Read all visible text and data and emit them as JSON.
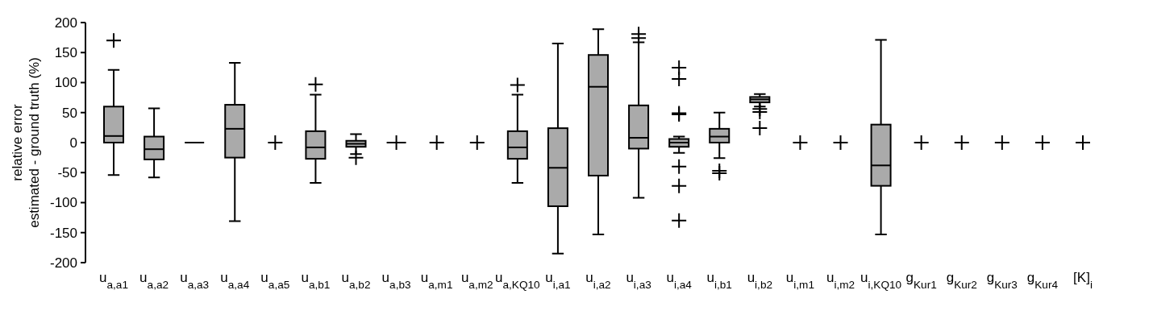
{
  "chart_data": {
    "type": "box",
    "ylabel": "relative error\nestimated - ground truth  (%)",
    "categories": [
      "u$_{a,a1}$",
      "u$_{a,a2}$",
      "u$_{a,a3}$",
      "u$_{a,a4}$",
      "u$_{a,a5}$",
      "u$_{a,b1}$",
      "u$_{a,b2}$",
      "u$_{a,b3}$",
      "u$_{a,m1}$",
      "u$_{a,m2}$",
      "u$_{a,KQ10}$",
      "u$_{i,a1}$",
      "u$_{i,a2}$",
      "u$_{i,a3}$",
      "u$_{i,a4}$",
      "u$_{i,b1}$",
      "u$_{i,b2}$",
      "u$_{i,m1}$",
      "u$_{i,m2}$",
      "u$_{i,KQ10}$",
      "g$_{Kur1}$",
      "g$_{Kur2}$",
      "g$_{Kur3}$",
      "g$_{Kur4}$",
      "[K]$_{i}$"
    ],
    "boxes": [
      {
        "low": -54,
        "q1": 0,
        "median": 11,
        "q3": 60,
        "high": 121,
        "outliers": [
          170
        ]
      },
      {
        "low": -58,
        "q1": -28,
        "median": -11,
        "q3": 10,
        "high": 57
      },
      {
        "low": 0,
        "q1": 0,
        "median": 0,
        "q3": 0,
        "high": 0
      },
      {
        "low": -131,
        "q1": -25,
        "median": 23,
        "q3": 63,
        "high": 133
      },
      null,
      {
        "low": -67,
        "q1": -27,
        "median": -8,
        "q3": 19,
        "high": 80,
        "outliers": [
          97
        ]
      },
      {
        "low": -19,
        "q1": -7,
        "median": -2,
        "q3": 3,
        "high": 14,
        "outliers": [
          -25
        ]
      },
      {
        "low": 0,
        "q1": 0,
        "median": 0,
        "q3": 0,
        "high": 0
      },
      null,
      null,
      {
        "low": -67,
        "q1": -27,
        "median": -8,
        "q3": 19,
        "high": 80,
        "outliers": [
          96
        ]
      },
      {
        "low": -185,
        "q1": -106,
        "median": -42,
        "q3": 24,
        "high": 165
      },
      {
        "low": -153,
        "q1": -55,
        "median": 93,
        "q3": 146,
        "high": 189
      },
      {
        "low": -92,
        "q1": -10,
        "median": 8,
        "q3": 62,
        "high": 167,
        "outliers": [
          174,
          181
        ]
      },
      {
        "low": -17,
        "q1": -7,
        "median": 0,
        "q3": 6,
        "high": 10,
        "outliers": [
          125,
          106,
          49,
          47,
          -40,
          -72,
          -130
        ]
      },
      {
        "low": -26,
        "q1": 0,
        "median": 10,
        "q3": 23,
        "high": 50,
        "outliers": [
          -47,
          -51
        ]
      },
      {
        "low": 60,
        "q1": 67,
        "median": 72,
        "q3": 76,
        "high": 81,
        "outliers": [
          56,
          51,
          24
        ]
      },
      null,
      null,
      {
        "low": -153,
        "q1": -72,
        "median": -38,
        "q3": 30,
        "high": 171
      },
      null,
      null,
      null,
      null,
      null
    ],
    "series": [
      {
        "type": "scatter",
        "x": [
          "u$_{a,a5}$",
          "u$_{a,b3}$",
          "u$_{a,m1}$",
          "u$_{a,m2}$",
          "u$_{i,m1}$",
          "u$_{i,m2}$",
          "g$_{Kur1}$",
          "g$_{Kur2}$",
          "g$_{Kur3}$",
          "g$_{Kur4}$",
          "[K]$_{i}$"
        ],
        "values": [
          0,
          0,
          0,
          0,
          0,
          0,
          0,
          0,
          0,
          0,
          0
        ],
        "color": "#000000"
      }
    ],
    "colors": [
      "#aaaaaa",
      "#aaaaaa",
      "#000000",
      "#aaaaaa",
      null,
      "#aaaaaa",
      "#aaaaaa",
      "#000000",
      null,
      null,
      "#aaaaaa",
      "#aaaaaa",
      "#aaaaaa",
      "#aaaaaa",
      "#aaaaaa",
      "#aaaaaa",
      "#aaaaaa",
      null,
      null,
      "#aaaaaa",
      null,
      null,
      null,
      null,
      null
    ],
    "marker": "cross",
    "ylim": [
      -200,
      200
    ],
    "yticks": [
      -200,
      -150,
      -100,
      -50,
      0,
      50,
      100,
      150,
      200
    ],
    "grid": false
  }
}
